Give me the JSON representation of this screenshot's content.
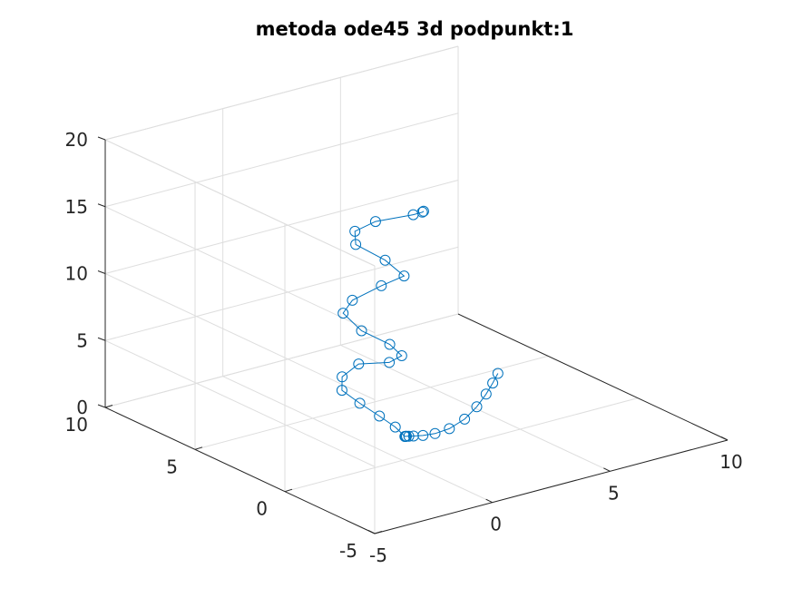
{
  "chart_data": {
    "type": "line3d",
    "title": "metoda ode45 3d podpunkt:1",
    "xlabel": "",
    "ylabel": "",
    "zlabel": "",
    "xlim": [
      -5,
      10
    ],
    "ylim": [
      -5,
      10
    ],
    "zlim": [
      0,
      20
    ],
    "xticks": [
      "-5",
      "0",
      "5",
      "10"
    ],
    "yticks": [
      "-5",
      "0",
      "5",
      "10"
    ],
    "zticks": [
      "0",
      "5",
      "10",
      "15",
      "20"
    ],
    "grid": true,
    "box": true,
    "line_color": "#0072bd",
    "marker": "circle",
    "series": [
      {
        "points": [
          [
            3.75,
            -0.4,
            5.0
          ],
          [
            3.52,
            -0.41,
            4.4
          ],
          [
            3.24,
            -0.41,
            3.7
          ],
          [
            2.89,
            -0.35,
            2.88
          ],
          [
            2.47,
            -0.22,
            2.07
          ],
          [
            1.97,
            -0.03,
            1.47
          ],
          [
            1.52,
            0.18,
            1.18
          ],
          [
            1.16,
            0.38,
            1.08
          ],
          [
            0.88,
            0.54,
            1.07
          ],
          [
            0.74,
            0.62,
            1.07
          ],
          [
            0.67,
            0.66,
            1.07
          ],
          [
            0.64,
            0.67,
            1.07
          ],
          [
            0.63,
            0.68,
            1.07
          ],
          [
            0.62,
            0.68,
            1.07
          ],
          [
            0.42,
            0.95,
            1.7
          ],
          [
            0.04,
            1.34,
            2.45
          ],
          [
            -0.41,
            1.84,
            3.3
          ],
          [
            -0.82,
            2.3,
            4.17
          ],
          [
            -0.81,
            2.3,
            5.17
          ],
          [
            -0.4,
            1.92,
            6.18
          ],
          [
            0.33,
            1.17,
            6.43
          ],
          [
            0.6,
            0.83,
            7.02
          ],
          [
            0.29,
            1.09,
            7.85
          ],
          [
            -0.39,
            1.77,
            8.75
          ],
          [
            -0.8,
            2.26,
            9.95
          ],
          [
            -0.55,
            2.07,
            10.92
          ],
          [
            0.16,
            1.39,
            12.1
          ],
          [
            0.71,
            0.84,
            12.92
          ],
          [
            0.27,
            1.32,
            14.0
          ],
          [
            -0.43,
            2.04,
            15.05
          ],
          [
            -0.45,
            2.06,
            16.03
          ],
          [
            0.05,
            1.57,
            16.84
          ],
          [
            0.96,
            0.66,
            17.49
          ],
          [
            1.18,
            0.44,
            17.72
          ],
          [
            1.21,
            0.41,
            17.79
          ]
        ]
      }
    ]
  }
}
